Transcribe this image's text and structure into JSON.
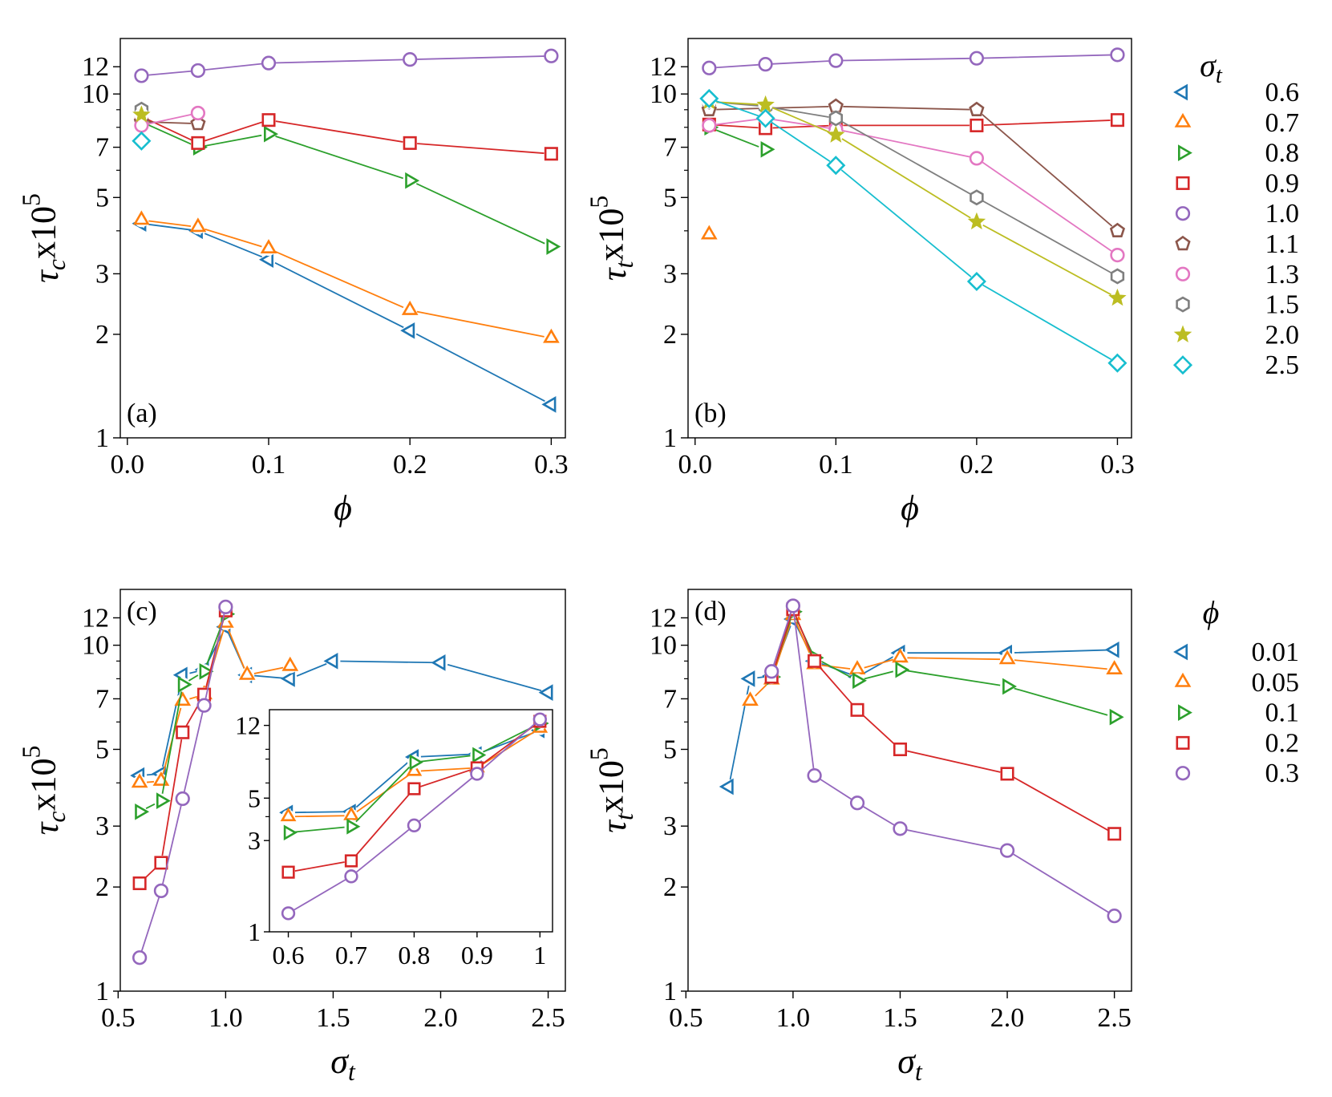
{
  "chart_data": [
    {
      "id": "a",
      "type": "line",
      "panel_label": "(a)",
      "xlabel": "ϕ",
      "ylabel": "τcx10⁵",
      "ylabel_parts": {
        "sym": "τ",
        "sub": "c",
        "mid": "x10",
        "sup": "5"
      },
      "xlabel_parts": {
        "sym": "ϕ",
        "sub": ""
      },
      "yscale": "log",
      "xlim": [
        -0.005,
        0.31
      ],
      "ylim": [
        1,
        14.5
      ],
      "xticks": [
        0.0,
        0.1,
        0.2,
        0.3
      ],
      "xtick_labels": [
        "0.0",
        "0.1",
        "0.2",
        "0.3"
      ],
      "yticks": [
        1,
        2,
        3,
        5,
        7,
        10,
        12
      ],
      "ytick_labels": [
        "1",
        "2",
        "3",
        "5",
        "7",
        "10",
        "12"
      ],
      "series": [
        {
          "name": "0.6",
          "x": [
            0.01,
            0.05,
            0.1,
            0.2,
            0.3
          ],
          "y": [
            4.2,
            4.0,
            3.3,
            2.05,
            1.25
          ]
        },
        {
          "name": "0.7",
          "x": [
            0.01,
            0.05,
            0.1,
            0.2,
            0.3
          ],
          "y": [
            4.3,
            4.1,
            3.55,
            2.35,
            1.95
          ]
        },
        {
          "name": "0.8",
          "x": [
            0.01,
            0.05,
            0.1,
            0.2,
            0.3
          ],
          "y": [
            8.3,
            7.0,
            7.65,
            5.6,
            3.6
          ]
        },
        {
          "name": "0.9",
          "x": [
            0.01,
            0.05,
            0.1,
            0.2,
            0.3
          ],
          "y": [
            8.6,
            7.2,
            8.4,
            7.2,
            6.7
          ]
        },
        {
          "name": "1.0",
          "x": [
            0.01,
            0.05,
            0.1,
            0.2,
            0.3
          ],
          "y": [
            11.3,
            11.7,
            12.3,
            12.6,
            12.9
          ]
        },
        {
          "name": "1.1",
          "x": [
            0.01,
            0.05
          ],
          "y": [
            8.3,
            8.2
          ]
        },
        {
          "name": "1.3",
          "x": [
            0.01,
            0.05
          ],
          "y": [
            8.1,
            8.8
          ]
        },
        {
          "name": "1.5",
          "x": [
            0.01
          ],
          "y": [
            9.0
          ]
        },
        {
          "name": "2.0",
          "x": [
            0.01
          ],
          "y": [
            8.7
          ]
        },
        {
          "name": "2.5",
          "x": [
            0.01
          ],
          "y": [
            7.3
          ]
        }
      ]
    },
    {
      "id": "b",
      "type": "line",
      "panel_label": "(b)",
      "xlabel": "ϕ",
      "ylabel": "τtx10⁵",
      "ylabel_parts": {
        "sym": "τ",
        "sub": "t",
        "mid": "x10",
        "sup": "5"
      },
      "xlabel_parts": {
        "sym": "ϕ",
        "sub": ""
      },
      "yscale": "log",
      "xlim": [
        -0.005,
        0.31
      ],
      "ylim": [
        1,
        14.5
      ],
      "xticks": [
        0.0,
        0.1,
        0.2,
        0.3
      ],
      "xtick_labels": [
        "0.0",
        "0.1",
        "0.2",
        "0.3"
      ],
      "yticks": [
        1,
        2,
        3,
        5,
        7,
        10,
        12
      ],
      "ytick_labels": [
        "1",
        "2",
        "3",
        "5",
        "7",
        "10",
        "12"
      ],
      "series": [
        {
          "name": "0.6",
          "x": [],
          "y": []
        },
        {
          "name": "0.7",
          "x": [
            0.01
          ],
          "y": [
            3.9
          ]
        },
        {
          "name": "0.8",
          "x": [
            0.01,
            0.05
          ],
          "y": [
            8.0,
            6.9
          ]
        },
        {
          "name": "0.9",
          "x": [
            0.01,
            0.05,
            0.1,
            0.2,
            0.3
          ],
          "y": [
            8.15,
            7.95,
            8.1,
            8.1,
            8.4
          ]
        },
        {
          "name": "1.0",
          "x": [
            0.01,
            0.05,
            0.1,
            0.2,
            0.3
          ],
          "y": [
            11.9,
            12.2,
            12.5,
            12.7,
            13.0
          ]
        },
        {
          "name": "1.1",
          "x": [
            0.01,
            0.1,
            0.2,
            0.3
          ],
          "y": [
            9.0,
            9.2,
            9.0,
            4.0
          ]
        },
        {
          "name": "1.3",
          "x": [
            0.01,
            0.05,
            0.1,
            0.2,
            0.3
          ],
          "y": [
            8.1,
            8.5,
            7.9,
            6.5,
            3.4
          ]
        },
        {
          "name": "1.5",
          "x": [
            0.01,
            0.05,
            0.1,
            0.2,
            0.3
          ],
          "y": [
            9.5,
            9.2,
            8.5,
            5.0,
            2.95
          ]
        },
        {
          "name": "2.0",
          "x": [
            0.01,
            0.05,
            0.1,
            0.2,
            0.3
          ],
          "y": [
            9.5,
            9.3,
            7.6,
            4.25,
            2.55
          ]
        },
        {
          "name": "2.5",
          "x": [
            0.01,
            0.05,
            0.1,
            0.2,
            0.3
          ],
          "y": [
            9.7,
            8.5,
            6.2,
            2.85,
            1.65
          ]
        }
      ]
    },
    {
      "id": "c",
      "type": "line",
      "panel_label": "(c)",
      "xlabel": "σt",
      "ylabel": "τcx10⁵",
      "ylabel_parts": {
        "sym": "τ",
        "sub": "c",
        "mid": "x10",
        "sup": "5"
      },
      "xlabel_parts": {
        "sym": "σ",
        "sub": "t"
      },
      "yscale": "log",
      "xlim": [
        0.51,
        2.58
      ],
      "ylim": [
        1,
        14.5
      ],
      "xticks": [
        0.5,
        1.0,
        1.5,
        2.0,
        2.5
      ],
      "xtick_labels": [
        "0.5",
        "1.0",
        "1.5",
        "2.0",
        "2.5"
      ],
      "yticks": [
        1,
        2,
        3,
        5,
        7,
        10,
        12
      ],
      "ytick_labels": [
        "1",
        "2",
        "3",
        "5",
        "7",
        "10",
        "12"
      ],
      "series": [
        {
          "name": "0.01",
          "x": [
            0.6,
            0.7,
            0.8,
            0.9,
            1.0,
            1.1,
            1.3,
            1.5,
            2.0,
            2.5
          ],
          "y": [
            4.2,
            4.25,
            8.2,
            8.5,
            11.3,
            8.2,
            8.0,
            9.0,
            8.9,
            7.3
          ]
        },
        {
          "name": "0.05",
          "x": [
            0.6,
            0.7,
            0.8,
            0.9,
            1.0,
            1.1,
            1.3
          ],
          "y": [
            4.0,
            4.05,
            6.9,
            7.2,
            11.6,
            8.2,
            8.7
          ]
        },
        {
          "name": "0.1",
          "x": [
            0.6,
            0.7,
            0.8,
            0.9,
            1.0
          ],
          "y": [
            3.3,
            3.55,
            7.7,
            8.4,
            12.3
          ]
        },
        {
          "name": "0.2",
          "x": [
            0.6,
            0.7,
            0.8,
            0.9,
            1.0
          ],
          "y": [
            2.05,
            2.35,
            5.6,
            7.2,
            12.6
          ]
        },
        {
          "name": "0.3",
          "x": [
            0.6,
            0.7,
            0.8,
            0.9,
            1.0
          ],
          "y": [
            1.25,
            1.95,
            3.6,
            6.7,
            12.9
          ]
        }
      ],
      "inset": {
        "xlim": [
          0.57,
          1.02
        ],
        "ylim": [
          1,
          14.5
        ],
        "xticks": [
          0.6,
          0.7,
          0.8,
          0.9,
          1.0
        ],
        "xtick_labels": [
          "0.6",
          "0.7",
          "0.8",
          "0.9",
          "1"
        ],
        "yticks": [
          1,
          3,
          5,
          12
        ],
        "ytick_labels": [
          "1",
          "3",
          "5",
          "12"
        ],
        "series": [
          {
            "name": "0.01",
            "x": [
              0.6,
              0.7,
              0.8,
              0.9,
              1.0
            ],
            "y": [
              4.2,
              4.25,
              8.2,
              8.5,
              11.3
            ]
          },
          {
            "name": "0.05",
            "x": [
              0.6,
              0.7,
              0.8,
              0.9,
              1.0
            ],
            "y": [
              4.0,
              4.05,
              6.9,
              7.2,
              11.6
            ]
          },
          {
            "name": "0.1",
            "x": [
              0.6,
              0.7,
              0.8,
              0.9,
              1.0
            ],
            "y": [
              3.3,
              3.55,
              7.7,
              8.4,
              12.3
            ]
          },
          {
            "name": "0.2",
            "x": [
              0.6,
              0.7,
              0.8,
              0.9,
              1.0
            ],
            "y": [
              2.05,
              2.35,
              5.6,
              7.2,
              12.6
            ]
          },
          {
            "name": "0.3",
            "x": [
              0.6,
              0.7,
              0.8,
              0.9,
              1.0
            ],
            "y": [
              1.25,
              1.95,
              3.6,
              6.7,
              12.9
            ]
          }
        ]
      }
    },
    {
      "id": "d",
      "type": "line",
      "panel_label": "(d)",
      "xlabel": "σt",
      "ylabel": "τtx10⁵",
      "ylabel_parts": {
        "sym": "τ",
        "sub": "t",
        "mid": "x10",
        "sup": "5"
      },
      "xlabel_parts": {
        "sym": "σ",
        "sub": "t"
      },
      "yscale": "log",
      "xlim": [
        0.51,
        2.58
      ],
      "ylim": [
        1,
        14.5
      ],
      "xticks": [
        0.5,
        1.0,
        1.5,
        2.0,
        2.5
      ],
      "xtick_labels": [
        "0.5",
        "1.0",
        "1.5",
        "2.0",
        "2.5"
      ],
      "yticks": [
        1,
        2,
        3,
        5,
        7,
        10,
        12
      ],
      "ytick_labels": [
        "1",
        "2",
        "3",
        "5",
        "7",
        "10",
        "12"
      ],
      "series": [
        {
          "name": "0.01",
          "x": [
            0.7,
            0.8,
            0.9,
            1.0,
            1.1,
            1.3,
            1.5,
            2.0,
            2.5
          ],
          "y": [
            3.9,
            8.0,
            8.15,
            11.9,
            9.0,
            8.1,
            9.5,
            9.5,
            9.7
          ]
        },
        {
          "name": "0.05",
          "x": [
            0.8,
            0.9,
            1.0,
            1.1,
            1.3,
            1.5,
            2.0,
            2.5
          ],
          "y": [
            6.9,
            7.95,
            12.2,
            8.8,
            8.5,
            9.2,
            9.1,
            8.5
          ]
        },
        {
          "name": "0.1",
          "x": [
            0.9,
            1.0,
            1.1,
            1.3,
            1.5,
            2.0,
            2.5
          ],
          "y": [
            8.1,
            12.5,
            9.2,
            7.9,
            8.5,
            7.6,
            6.2
          ]
        },
        {
          "name": "0.2",
          "x": [
            0.9,
            1.0,
            1.1,
            1.3,
            1.5,
            2.0,
            2.5
          ],
          "y": [
            8.1,
            12.7,
            9.0,
            6.5,
            5.0,
            4.25,
            2.85
          ]
        },
        {
          "name": "0.3",
          "x": [
            0.9,
            1.0,
            1.1,
            1.3,
            1.5,
            2.0,
            2.5
          ],
          "y": [
            8.4,
            13.0,
            4.2,
            3.5,
            2.95,
            2.55,
            1.65
          ]
        }
      ]
    }
  ],
  "legends": [
    {
      "id": "sigma",
      "title": "σt",
      "title_parts": {
        "sym": "σ",
        "sub": "t"
      },
      "entries": [
        {
          "label": "0.6",
          "marker": "triangle-left",
          "color": "#1f77b4"
        },
        {
          "label": "0.7",
          "marker": "triangle-up",
          "color": "#ff7f0e"
        },
        {
          "label": "0.8",
          "marker": "triangle-right",
          "color": "#2ca02c"
        },
        {
          "label": "0.9",
          "marker": "square",
          "color": "#d62728"
        },
        {
          "label": "1.0",
          "marker": "circle",
          "color": "#9467bd"
        },
        {
          "label": "1.1",
          "marker": "pentagon",
          "color": "#8c564b"
        },
        {
          "label": "1.3",
          "marker": "circle",
          "color": "#e377c2"
        },
        {
          "label": "1.5",
          "marker": "hexagon",
          "color": "#7f7f7f"
        },
        {
          "label": "2.0",
          "marker": "star",
          "color": "#bcbd22"
        },
        {
          "label": "2.5",
          "marker": "diamond",
          "color": "#17becf"
        }
      ]
    },
    {
      "id": "phi",
      "title": "ϕ",
      "title_parts": {
        "sym": "ϕ",
        "sub": ""
      },
      "entries": [
        {
          "label": "0.01",
          "marker": "triangle-left",
          "color": "#1f77b4"
        },
        {
          "label": "0.05",
          "marker": "triangle-up",
          "color": "#ff7f0e"
        },
        {
          "label": "0.1",
          "marker": "triangle-right",
          "color": "#2ca02c"
        },
        {
          "label": "0.2",
          "marker": "square",
          "color": "#d62728"
        },
        {
          "label": "0.3",
          "marker": "circle",
          "color": "#9467bd"
        }
      ]
    }
  ]
}
